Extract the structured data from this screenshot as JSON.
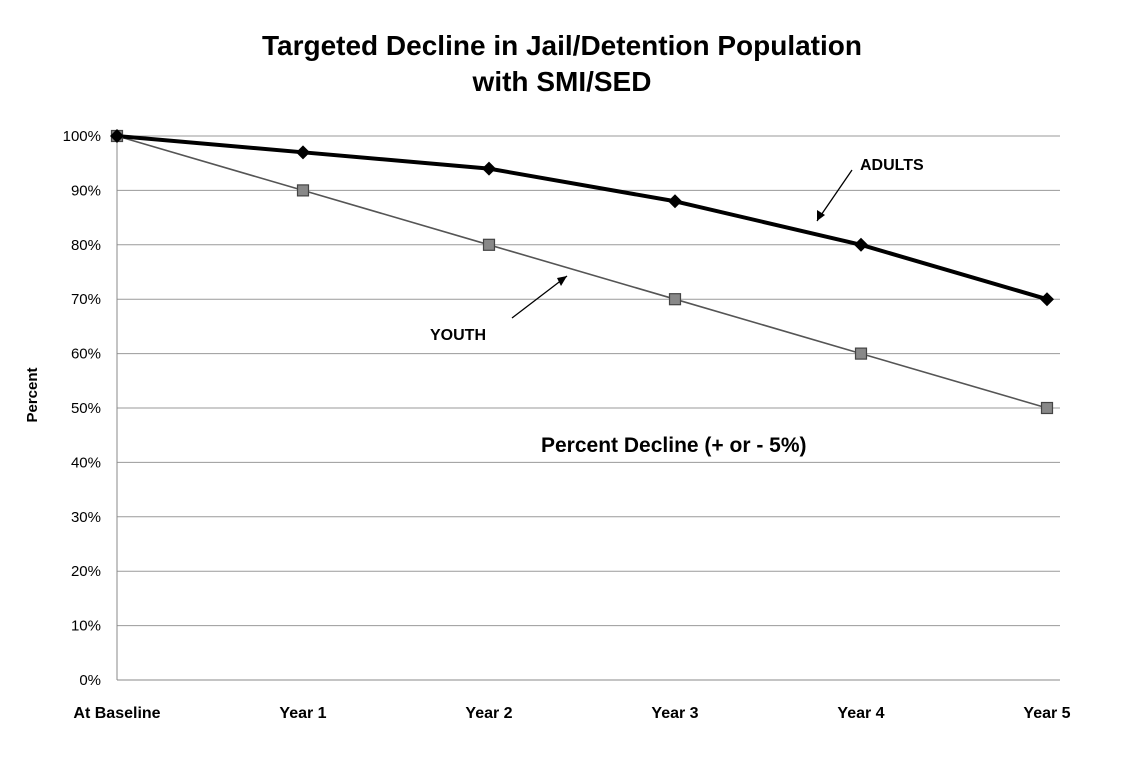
{
  "chart_data": {
    "type": "line",
    "title": "Targeted Decline in Jail/Detention Population",
    "subtitle": "with SMI/SED",
    "xlabel": "",
    "ylabel": "Percent",
    "categories": [
      "At Baseline",
      "Year 1",
      "Year 2",
      "Year 3",
      "Year 4",
      "Year 5"
    ],
    "y_ticks": [
      "0%",
      "10%",
      "20%",
      "30%",
      "40%",
      "50%",
      "60%",
      "70%",
      "80%",
      "90%",
      "100%"
    ],
    "ylim": [
      0,
      100
    ],
    "grid": "horizontal",
    "legend": "none",
    "series": [
      {
        "name": "ADULTS",
        "values": [
          100,
          97,
          94,
          88,
          80,
          70
        ],
        "color": "#000000",
        "marker": "diamond"
      },
      {
        "name": "YOUTH",
        "values": [
          100,
          90,
          80,
          70,
          60,
          50
        ],
        "color": "#555555",
        "marker": "square"
      }
    ],
    "annotations": {
      "adults_label": "ADULTS",
      "youth_label": "YOUTH",
      "note": "Percent Decline (+ or - 5%)"
    }
  }
}
